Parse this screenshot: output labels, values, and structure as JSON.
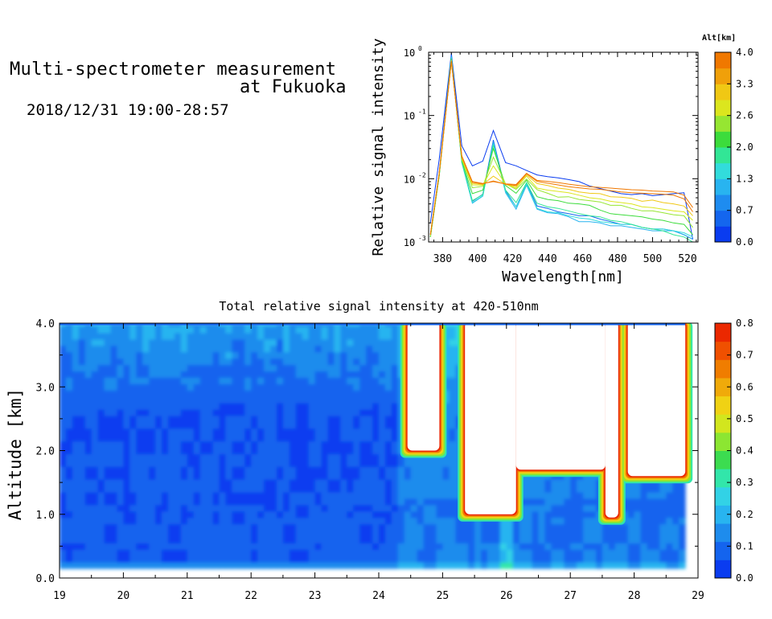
{
  "header": {
    "title_line1": "Multi-spectrometer measurement",
    "title_line2": "at Fukuoka",
    "datetime": "2018/12/31 19:00-28:57"
  },
  "chart_data": [
    {
      "type": "line",
      "xlabel": "Wavelength[nm]",
      "ylabel": "Relative signal intensity",
      "xlim": [
        372,
        526
      ],
      "ylim": [
        0.001,
        1
      ],
      "yscale": "log",
      "x_ticks": [
        380,
        400,
        420,
        440,
        460,
        480,
        500,
        520
      ],
      "y_ticks": [
        {
          "value": 0.001,
          "mantissa": "10",
          "exp": "-3"
        },
        {
          "value": 0.01,
          "mantissa": "10",
          "exp": "-2"
        },
        {
          "value": 0.1,
          "mantissa": "10",
          "exp": "-1"
        },
        {
          "value": 1,
          "mantissa": "10",
          "exp": "0"
        }
      ],
      "x": [
        373,
        378,
        385,
        391,
        397,
        403,
        409,
        416,
        422,
        428,
        434,
        440,
        446,
        452,
        458,
        464,
        470,
        476,
        482,
        488,
        494,
        500,
        506,
        512,
        518,
        523
      ],
      "colorbar": {
        "label": "Alt[km]",
        "min": 0.0,
        "max": 4.0,
        "tick_labels": [
          "0.0",
          "0.7",
          "1.3",
          "2.0",
          "2.6",
          "3.3",
          "4.0"
        ],
        "colors": [
          "#0a3cf0",
          "#1466ee",
          "#1e8cf0",
          "#28b4f0",
          "#32dcdc",
          "#32e696",
          "#3cdc3c",
          "#96e632",
          "#dce61e",
          "#f0c814",
          "#f0a00a",
          "#f07800"
        ]
      },
      "series": [
        {
          "altitude": 0.2,
          "values": [
            0.002,
            0.02,
            0.96,
            0.033,
            0.016,
            0.019,
            0.058,
            0.018,
            0.016,
            0.0135,
            0.0115,
            0.0108,
            0.0103,
            0.0097,
            0.009,
            0.0077,
            0.007,
            0.0064,
            0.0058,
            0.0056,
            0.0058,
            0.0054,
            0.0056,
            0.0058,
            0.006,
            0.0011
          ]
        },
        {
          "altitude": 0.6,
          "values": [
            0.0013,
            0.012,
            0.9,
            0.02,
            0.0044,
            0.0057,
            0.041,
            0.0065,
            0.0036,
            0.0085,
            0.0037,
            0.0034,
            0.003,
            0.0028,
            0.0026,
            0.0026,
            0.0023,
            0.0021,
            0.0019,
            0.0019,
            0.0017,
            0.0016,
            0.0016,
            0.0015,
            0.0013,
            0.0011
          ]
        },
        {
          "altitude": 1.0,
          "values": [
            0.0012,
            0.011,
            0.86,
            0.018,
            0.0041,
            0.0053,
            0.038,
            0.006,
            0.0033,
            0.0079,
            0.0033,
            0.0029,
            0.0028,
            0.0025,
            0.0021,
            0.0021,
            0.002,
            0.0018,
            0.0018,
            0.0017,
            0.0016,
            0.0015,
            0.0015,
            0.0015,
            0.0013,
            0.0011
          ]
        },
        {
          "altitude": 1.4,
          "values": [
            0.0012,
            0.011,
            0.83,
            0.018,
            0.0042,
            0.0054,
            0.036,
            0.0062,
            0.0036,
            0.0083,
            0.0034,
            0.003,
            0.0029,
            0.0026,
            0.0024,
            0.0023,
            0.0021,
            0.002,
            0.0019,
            0.0019,
            0.0017,
            0.0016,
            0.0016,
            0.0015,
            0.0014,
            0.0012
          ]
        },
        {
          "altitude": 1.7,
          "values": [
            0.0012,
            0.011,
            0.8,
            0.019,
            0.0045,
            0.0056,
            0.034,
            0.0066,
            0.0042,
            0.0087,
            0.0041,
            0.0036,
            0.0034,
            0.0031,
            0.0028,
            0.0026,
            0.0025,
            0.0022,
            0.0021,
            0.0019,
            0.0017,
            0.0016,
            0.0015,
            0.0013,
            0.0012,
            0.001
          ]
        },
        {
          "altitude": 2.1,
          "values": [
            0.0012,
            0.011,
            0.78,
            0.019,
            0.0058,
            0.0066,
            0.03,
            0.0078,
            0.0059,
            0.0095,
            0.0052,
            0.0047,
            0.0045,
            0.0041,
            0.004,
            0.0038,
            0.0032,
            0.0028,
            0.0027,
            0.0026,
            0.0025,
            0.0023,
            0.0022,
            0.002,
            0.0019,
            0.0013
          ]
        },
        {
          "altitude": 2.5,
          "values": [
            0.0012,
            0.011,
            0.76,
            0.02,
            0.0072,
            0.0076,
            0.022,
            0.0083,
            0.0068,
            0.0099,
            0.0067,
            0.0059,
            0.0051,
            0.0052,
            0.0047,
            0.0045,
            0.0043,
            0.0038,
            0.0038,
            0.0034,
            0.0031,
            0.0031,
            0.0029,
            0.0027,
            0.0026,
            0.0017
          ]
        },
        {
          "altitude": 2.9,
          "values": [
            0.0013,
            0.012,
            0.74,
            0.021,
            0.008,
            0.0079,
            0.016,
            0.0082,
            0.0071,
            0.011,
            0.0071,
            0.0066,
            0.0063,
            0.006,
            0.0055,
            0.005,
            0.0048,
            0.0044,
            0.0042,
            0.004,
            0.0036,
            0.0035,
            0.0033,
            0.0031,
            0.003,
            0.0022
          ]
        },
        {
          "altitude": 3.3,
          "values": [
            0.0013,
            0.012,
            0.73,
            0.022,
            0.0084,
            0.0081,
            0.011,
            0.0081,
            0.0075,
            0.0115,
            0.0084,
            0.0078,
            0.0071,
            0.0068,
            0.0062,
            0.0059,
            0.0058,
            0.0052,
            0.0051,
            0.0049,
            0.0044,
            0.0046,
            0.0042,
            0.004,
            0.0037,
            0.0026
          ]
        },
        {
          "altitude": 3.7,
          "values": [
            0.0013,
            0.012,
            0.72,
            0.022,
            0.0088,
            0.0083,
            0.0092,
            0.0082,
            0.0078,
            0.012,
            0.0091,
            0.0085,
            0.008,
            0.0075,
            0.0072,
            0.0069,
            0.0068,
            0.0065,
            0.0062,
            0.006,
            0.0059,
            0.0058,
            0.0057,
            0.0055,
            0.0048,
            0.003
          ]
        },
        {
          "altitude": 3.9,
          "values": [
            0.0013,
            0.012,
            0.71,
            0.023,
            0.009,
            0.0084,
            0.009,
            0.0083,
            0.0081,
            0.0122,
            0.0094,
            0.0091,
            0.0087,
            0.0082,
            0.0078,
            0.0075,
            0.0073,
            0.0071,
            0.0069,
            0.0067,
            0.0066,
            0.0064,
            0.0063,
            0.0062,
            0.0055,
            0.0035
          ]
        }
      ]
    },
    {
      "type": "heatmap",
      "title": "Total relative signal intensity at 420-510nm",
      "ylabel": "Altitude [km]",
      "xlim": [
        19,
        29
      ],
      "ylim": [
        0,
        4
      ],
      "x_tick_labels": [
        "19",
        "20",
        "21",
        "22",
        "23",
        "24",
        "25",
        "26",
        "27",
        "28",
        "29"
      ],
      "y_tick_labels": [
        "0.0",
        "1.0",
        "2.0",
        "3.0",
        "4.0"
      ],
      "data_xlim": [
        19,
        28.8
      ],
      "data_ylim": [
        0.15,
        4.0
      ],
      "saturated_regions_cloud": [
        {
          "x_start": 24.45,
          "x_end": 24.95,
          "base_km": 2.0,
          "top_km": 4.0
        },
        {
          "x_start": 25.35,
          "x_end": 26.15,
          "base_km": 1.0,
          "top_km": 4.0
        },
        {
          "x_start": 26.15,
          "x_end": 27.55,
          "base_km": 1.7,
          "top_km": 4.0
        },
        {
          "x_start": 27.55,
          "x_end": 27.75,
          "base_km": 0.95,
          "top_km": 4.0
        },
        {
          "x_start": 27.9,
          "x_end": 28.8,
          "base_km": 1.6,
          "top_km": 4.0
        }
      ],
      "colorbar": {
        "min": 0.0,
        "max": 0.8,
        "tick_labels": [
          "0.0",
          "0.1",
          "0.2",
          "0.3",
          "0.4",
          "0.5",
          "0.6",
          "0.7",
          "0.8"
        ],
        "colors": [
          "#0a3cf0",
          "#1464ee",
          "#1e8ced",
          "#28b4f0",
          "#32d2e6",
          "#32e6aa",
          "#3cdc50",
          "#8ce632",
          "#d2e61e",
          "#f0d214",
          "#f0aa0a",
          "#f07d00",
          "#f05000",
          "#eb2800"
        ]
      }
    }
  ]
}
